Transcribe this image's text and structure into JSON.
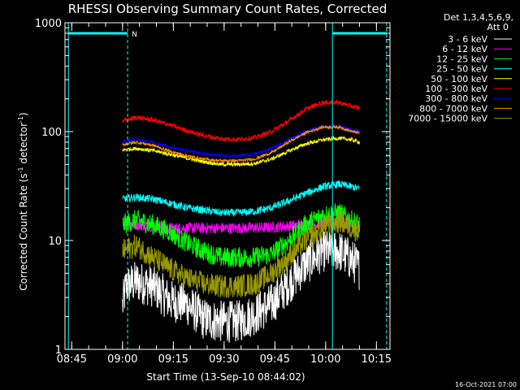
{
  "chart_data": {
    "type": "line",
    "title": "RHESSI Observing Summary Count Rates, Corrected",
    "xlabel": "Start Time (13-Sep-10 08:44:02)",
    "ylabel_main": "Corrected Count Rate (s",
    "ylabel_sup1": "-1",
    "ylabel_mid": " detector",
    "ylabel_sup2": "-1",
    "ylabel_end": ")",
    "yscale": "log",
    "ylim": [
      1,
      1000
    ],
    "xlim_minutes": [
      -1,
      95
    ],
    "x_ticks": [
      {
        "label": "08:45",
        "minute": 1
      },
      {
        "label": "09:00",
        "minute": 16
      },
      {
        "label": "09:15",
        "minute": 31
      },
      {
        "label": "09:30",
        "minute": 46
      },
      {
        "label": "09:45",
        "minute": 61
      },
      {
        "label": "10:00",
        "minute": 76
      },
      {
        "label": "10:15",
        "minute": 91
      }
    ],
    "y_ticks": [
      {
        "label": "1",
        "value": 1
      },
      {
        "label": "10",
        "value": 10
      },
      {
        "label": "100",
        "value": 100
      },
      {
        "label": "1000",
        "value": 1000
      }
    ],
    "legend_header_1": "Det 1,3,4,5,6,9,",
    "legend_header_2": "Att 0",
    "night_label": "N",
    "timestamp": "16-Oct-2021 07:00",
    "data_span_minutes": [
      16,
      86
    ],
    "series": [
      {
        "name": "3 - 6 keV",
        "color": "#ffffff",
        "noise": 0.45,
        "x": [
          16,
          17,
          20,
          25,
          30,
          35,
          40,
          45,
          50,
          55,
          60,
          65,
          70,
          75,
          80,
          84,
          86
        ],
        "y": [
          2.5,
          3.8,
          4.2,
          3.8,
          2.8,
          2.6,
          1.9,
          1.8,
          1.8,
          2.1,
          2.6,
          4,
          6,
          8,
          8,
          6.5,
          5.5
        ]
      },
      {
        "name": "6 - 12 keV",
        "color": "#ff00ff",
        "noise": 0.12,
        "x": [
          16,
          20,
          25,
          30,
          40,
          50,
          60,
          70,
          80,
          86
        ],
        "y": [
          15,
          14,
          13.5,
          13,
          13,
          13,
          13.2,
          14,
          14.5,
          13
        ]
      },
      {
        "name": "12 - 25 keV",
        "color": "#00ff00",
        "noise": 0.22,
        "x": [
          16,
          20,
          25,
          30,
          35,
          40,
          45,
          50,
          55,
          60,
          65,
          70,
          75,
          80,
          84,
          86
        ],
        "y": [
          14,
          15.5,
          14,
          12,
          9.5,
          8,
          7,
          7,
          7,
          7.5,
          10,
          14,
          17,
          18,
          15,
          14
        ]
      },
      {
        "name": "25 - 50 keV",
        "color": "#00ffff",
        "noise": 0.08,
        "x": [
          16,
          20,
          25,
          30,
          35,
          40,
          45,
          50,
          55,
          60,
          65,
          70,
          75,
          80,
          84,
          86
        ],
        "y": [
          24,
          25,
          24,
          22,
          20,
          19,
          18,
          18,
          18.5,
          20,
          23,
          27,
          31,
          33,
          31,
          30
        ]
      },
      {
        "name": "50 - 100 keV",
        "color": "#ffff00",
        "noise": 0.04,
        "x": [
          16,
          20,
          25,
          30,
          35,
          40,
          45,
          50,
          55,
          60,
          65,
          70,
          75,
          80,
          84,
          86
        ],
        "y": [
          68,
          70,
          67,
          62,
          57,
          53,
          50,
          50,
          51,
          56,
          66,
          77,
          84,
          87,
          84,
          80
        ]
      },
      {
        "name": "100 - 300 keV",
        "color": "#ff0000",
        "noise": 0.05,
        "x": [
          16,
          20,
          25,
          30,
          35,
          40,
          45,
          50,
          55,
          60,
          65,
          70,
          75,
          80,
          84,
          86
        ],
        "y": [
          125,
          135,
          128,
          115,
          102,
          92,
          86,
          85,
          88,
          100,
          125,
          160,
          185,
          185,
          170,
          165
        ]
      },
      {
        "name": "300 - 800 keV",
        "color": "#0000ff",
        "noise": 0.03,
        "x": [
          16,
          20,
          25,
          30,
          35,
          40,
          45,
          50,
          55,
          60,
          65,
          70,
          75,
          80,
          84,
          86
        ],
        "y": [
          80,
          85,
          80,
          72,
          67,
          63,
          60,
          60,
          62,
          70,
          84,
          100,
          112,
          112,
          103,
          100
        ]
      },
      {
        "name": "800 - 7000 keV",
        "color": "#ff8c00",
        "noise": 0.03,
        "x": [
          16,
          20,
          25,
          30,
          35,
          40,
          45,
          50,
          55,
          60,
          65,
          70,
          75,
          80,
          84,
          86
        ],
        "y": [
          76,
          80,
          75,
          66,
          60,
          56,
          54,
          54,
          56,
          64,
          80,
          97,
          110,
          110,
          100,
          97
        ]
      },
      {
        "name": "7000 - 15000 keV",
        "color": "#999900",
        "noise": 0.25,
        "x": [
          16,
          20,
          25,
          30,
          35,
          40,
          45,
          50,
          55,
          60,
          65,
          70,
          75,
          80,
          84,
          86
        ],
        "y": [
          8,
          9,
          7,
          5.5,
          4.5,
          4,
          3.8,
          3.8,
          4,
          5,
          7,
          10,
          13,
          15,
          13,
          12
        ]
      }
    ],
    "annotations": {
      "color": "#00ffff",
      "solid_lines_minutes": [
        0,
        78
      ],
      "dashed_lines_minutes": [
        17.5,
        94
      ],
      "night_bar_1": {
        "from_minute": 0,
        "to_minute": 17.5,
        "value": 800
      },
      "night_bar_2": {
        "from_minute": 78,
        "to_minute": 94,
        "value": 800
      }
    }
  }
}
